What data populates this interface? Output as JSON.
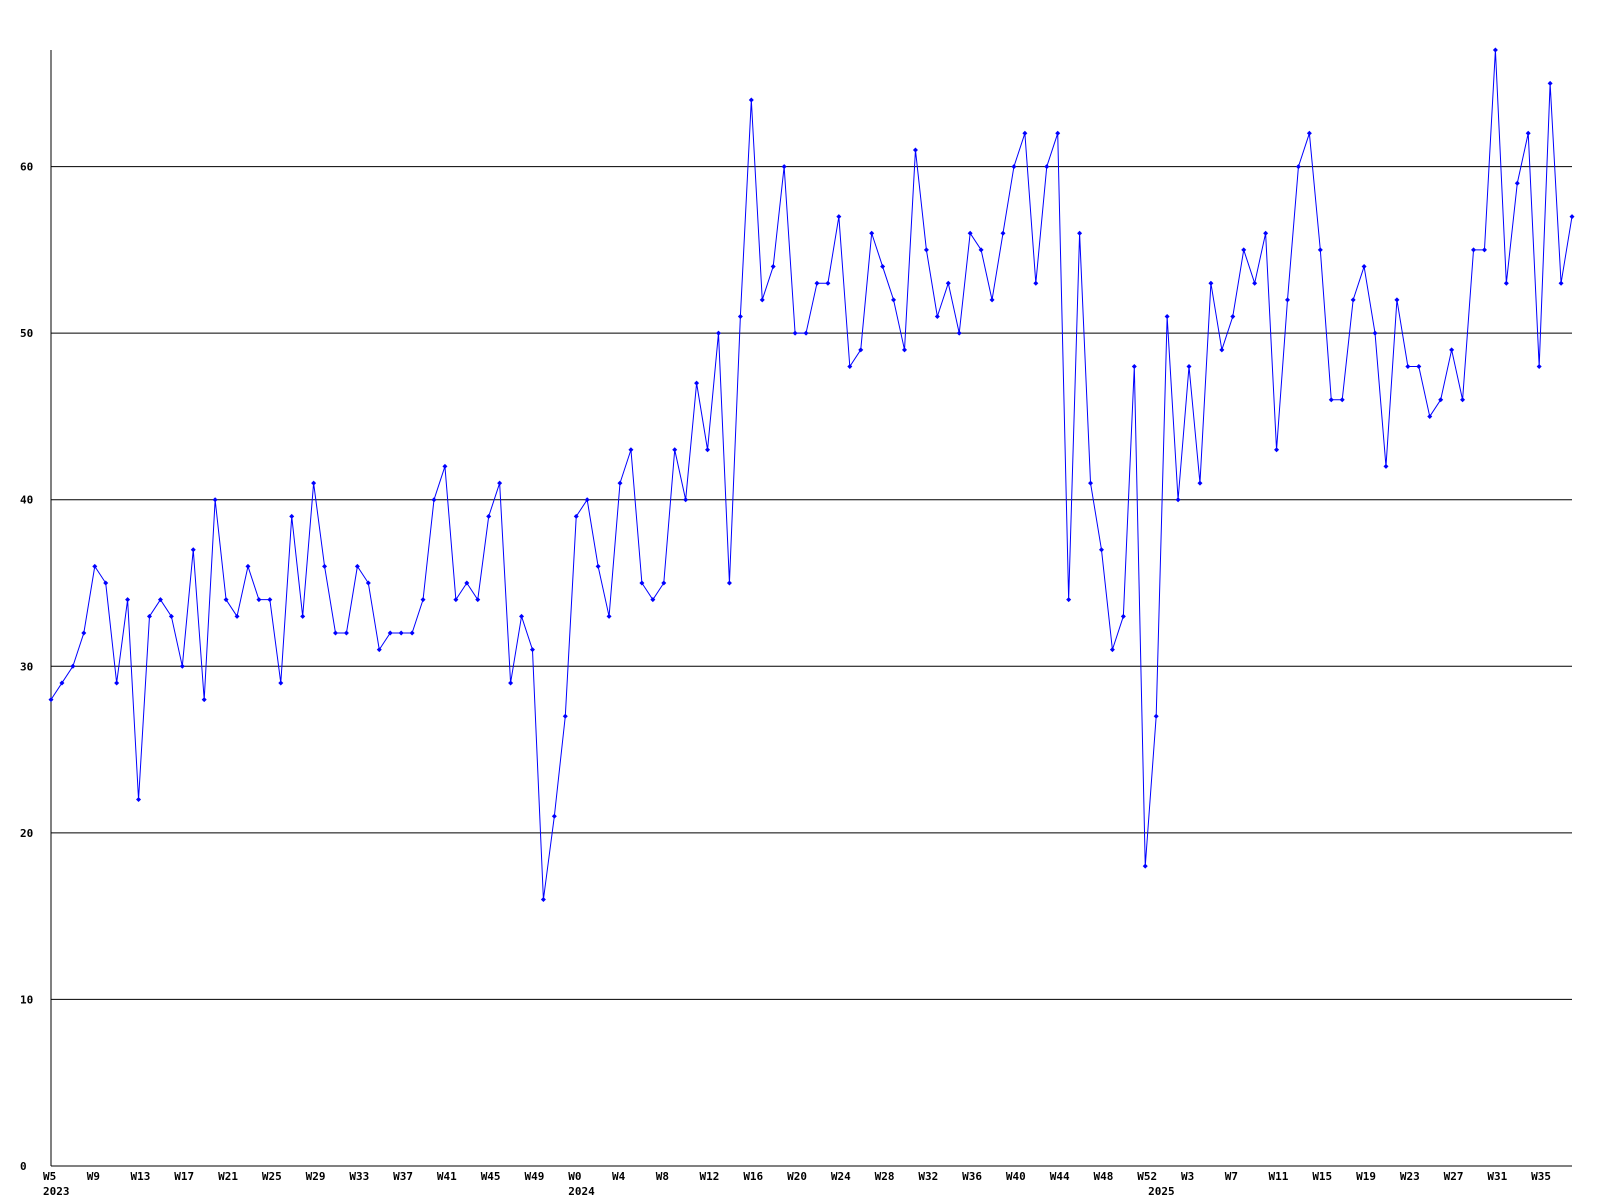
{
  "chart_data": {
    "type": "line",
    "categories": [
      "W5",
      null,
      null,
      null,
      "W9",
      null,
      null,
      null,
      "W13",
      null,
      null,
      null,
      "W17",
      null,
      null,
      null,
      "W21",
      null,
      null,
      null,
      "W25",
      null,
      null,
      null,
      "W29",
      null,
      null,
      null,
      "W33",
      null,
      null,
      null,
      "W37",
      null,
      null,
      null,
      "W41",
      null,
      null,
      null,
      "W45",
      null,
      null,
      null,
      "W49",
      null,
      null,
      null,
      "W0",
      null,
      null,
      null,
      "W4",
      null,
      null,
      null,
      "W8",
      null,
      null,
      null,
      "W12",
      null,
      null,
      null,
      "W16",
      null,
      null,
      null,
      "W20",
      null,
      null,
      null,
      "W24",
      null,
      null,
      null,
      "W28",
      null,
      null,
      null,
      "W32",
      null,
      null,
      null,
      "W36",
      null,
      null,
      null,
      "W40",
      null,
      null,
      null,
      "W44",
      null,
      null,
      null,
      "W48",
      null,
      null,
      null,
      "W52",
      null,
      null,
      null,
      "W3",
      null,
      null,
      null,
      "W7",
      null,
      null,
      null,
      "W11",
      null,
      null,
      null,
      "W15",
      null,
      null,
      null,
      "W19",
      null,
      null,
      null,
      "W23",
      null,
      null,
      null,
      "W27",
      null,
      null,
      null,
      "W31",
      null,
      null,
      null,
      "W35",
      null,
      null,
      null
    ],
    "year_labels": [
      "2023",
      null,
      null,
      null,
      null,
      null,
      null,
      null,
      null,
      null,
      null,
      null,
      null,
      null,
      null,
      null,
      null,
      null,
      null,
      null,
      null,
      null,
      null,
      null,
      null,
      null,
      null,
      null,
      null,
      null,
      null,
      null,
      null,
      null,
      null,
      null,
      null,
      null,
      null,
      null,
      null,
      null,
      null,
      null,
      null,
      null,
      null,
      null,
      "2024",
      null,
      null,
      null,
      null,
      null,
      null,
      null,
      null,
      null,
      null,
      null,
      null,
      null,
      null,
      null,
      null,
      null,
      null,
      null,
      null,
      null,
      null,
      null,
      null,
      null,
      null,
      null,
      null,
      null,
      null,
      null,
      null,
      null,
      null,
      null,
      null,
      null,
      null,
      null,
      null,
      null,
      null,
      null,
      null,
      null,
      null,
      null,
      null,
      null,
      null,
      null,
      null,
      "2025",
      null,
      null,
      null,
      null,
      null,
      null,
      null,
      null,
      null,
      null,
      null,
      null,
      null,
      null,
      null,
      null,
      null,
      null,
      null,
      null,
      null,
      null,
      null,
      null,
      null,
      null,
      null,
      null,
      null,
      null,
      null,
      null,
      null,
      null,
      null,
      null,
      null,
      null
    ],
    "series": [
      {
        "color": "#0000ff",
        "values": [
          28,
          29,
          30,
          32,
          36,
          35,
          29,
          34,
          22,
          33,
          34,
          33,
          30,
          37,
          28,
          40,
          34,
          33,
          36,
          34,
          34,
          29,
          39,
          33,
          41,
          36,
          32,
          32,
          36,
          35,
          31,
          32,
          32,
          32,
          34,
          40,
          42,
          34,
          35,
          34,
          39,
          41,
          29,
          33,
          31,
          16,
          21,
          27,
          39,
          40,
          36,
          33,
          41,
          43,
          35,
          34,
          35,
          43,
          40,
          47,
          43,
          50,
          35,
          51,
          64,
          52,
          54,
          60,
          50,
          50,
          53,
          53,
          57,
          48,
          49,
          56,
          54,
          52,
          49,
          61,
          55,
          51,
          53,
          50,
          56,
          55,
          52,
          56,
          60,
          62,
          53,
          60,
          62,
          34,
          56,
          41,
          37,
          31,
          33,
          48,
          18,
          27,
          51,
          40,
          48,
          41,
          53,
          49,
          51,
          55,
          53,
          56,
          43,
          52,
          60,
          62,
          55,
          46,
          46,
          52,
          54,
          50,
          42,
          52,
          48,
          48,
          45,
          46,
          49,
          46,
          55,
          55,
          67,
          53,
          59,
          62,
          48,
          65,
          53,
          57
        ]
      }
    ],
    "ylim": [
      0,
      67
    ],
    "yticks": [
      0,
      10,
      20,
      30,
      40,
      50,
      60
    ],
    "grid": true
  }
}
